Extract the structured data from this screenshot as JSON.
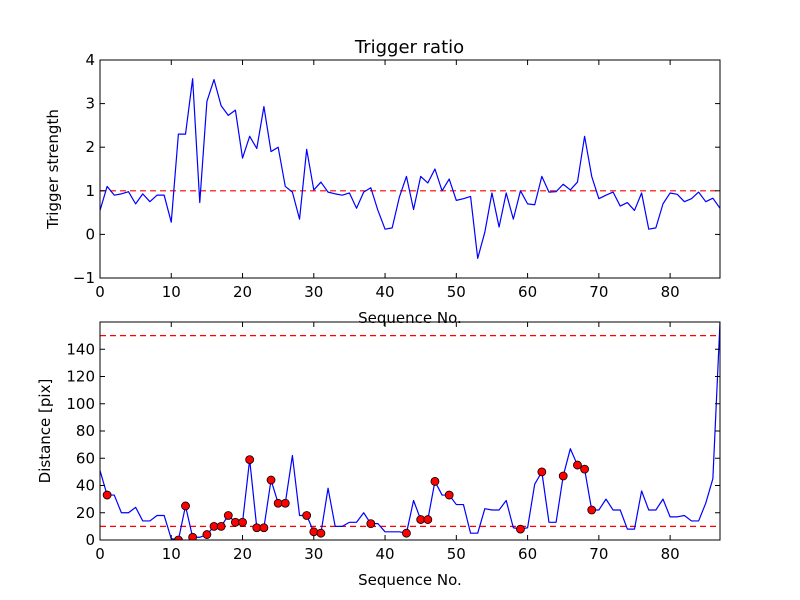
{
  "chart_data": [
    {
      "type": "line",
      "title": "Trigger ratio",
      "xlabel": "Sequence No.",
      "ylabel": "Trigger strength",
      "xlim": [
        0,
        87
      ],
      "ylim": [
        -1,
        4
      ],
      "xticks": [
        0,
        10,
        20,
        30,
        40,
        50,
        60,
        70,
        80
      ],
      "xtick_labels": [
        "0",
        "10",
        "20",
        "30",
        "40",
        "50",
        "60",
        "70",
        "80"
      ],
      "yticks": [
        -1,
        0,
        1,
        2,
        3,
        4
      ],
      "ytick_labels": [
        "−1",
        "0",
        "1",
        "2",
        "3",
        "4"
      ],
      "series": [
        {
          "name": "trigger strength",
          "color": "#0000ff",
          "x": [
            0,
            1,
            2,
            3,
            4,
            5,
            6,
            7,
            8,
            9,
            10,
            11,
            12,
            13,
            14,
            15,
            16,
            17,
            18,
            19,
            20,
            21,
            22,
            23,
            24,
            25,
            26,
            27,
            28,
            29,
            30,
            31,
            32,
            33,
            34,
            35,
            36,
            37,
            38,
            39,
            40,
            41,
            42,
            43,
            44,
            45,
            46,
            47,
            48,
            49,
            50,
            51,
            52,
            53,
            54,
            55,
            56,
            57,
            58,
            59,
            60,
            61,
            62,
            63,
            64,
            65,
            66,
            67,
            68,
            69,
            70,
            71,
            72,
            73,
            74,
            75,
            76,
            77,
            78,
            79,
            80,
            81,
            82,
            83,
            84,
            85,
            86,
            87
          ],
          "values": [
            0.55,
            1.1,
            0.9,
            0.93,
            0.98,
            0.7,
            0.93,
            0.75,
            0.9,
            0.9,
            0.28,
            2.3,
            2.3,
            3.57,
            0.73,
            3.05,
            3.55,
            2.95,
            2.73,
            2.85,
            1.75,
            2.25,
            1.97,
            2.93,
            1.9,
            2.0,
            1.1,
            0.97,
            0.35,
            1.95,
            1.02,
            1.2,
            0.97,
            0.93,
            0.9,
            0.95,
            0.6,
            0.97,
            1.07,
            0.55,
            0.12,
            0.15,
            0.85,
            1.33,
            0.57,
            1.33,
            1.18,
            1.5,
            1.0,
            1.27,
            0.78,
            0.82,
            0.87,
            -0.55,
            0.05,
            0.95,
            0.17,
            0.95,
            0.35,
            1.0,
            0.7,
            0.68,
            1.33,
            0.97,
            0.98,
            1.15,
            1.02,
            1.2,
            2.25,
            1.33,
            0.82,
            0.9,
            0.97,
            0.65,
            0.73,
            0.55,
            0.95,
            0.12,
            0.15,
            0.7,
            0.95,
            0.92,
            0.75,
            0.82,
            0.97,
            0.75,
            0.83,
            0.6
          ]
        }
      ],
      "reference_lines": [
        {
          "y": 1,
          "color": "#ff0000",
          "style": "dashed"
        }
      ]
    },
    {
      "type": "line",
      "title": "",
      "xlabel": "Sequence No.",
      "ylabel": "Distance [pix]",
      "xlim": [
        0,
        87
      ],
      "ylim": [
        0,
        160
      ],
      "xticks": [
        0,
        10,
        20,
        30,
        40,
        50,
        60,
        70,
        80
      ],
      "xtick_labels": [
        "0",
        "10",
        "20",
        "30",
        "40",
        "50",
        "60",
        "70",
        "80"
      ],
      "yticks": [
        0,
        20,
        40,
        60,
        80,
        100,
        120,
        140
      ],
      "ytick_labels": [
        "0",
        "20",
        "40",
        "60",
        "80",
        "100",
        "120",
        "140"
      ],
      "series": [
        {
          "name": "distance",
          "color": "#0000ff",
          "x": [
            0,
            1,
            2,
            3,
            4,
            5,
            6,
            7,
            8,
            9,
            10,
            11,
            12,
            13,
            14,
            15,
            16,
            17,
            18,
            19,
            20,
            21,
            22,
            23,
            24,
            25,
            26,
            27,
            28,
            29,
            30,
            31,
            32,
            33,
            34,
            35,
            36,
            37,
            38,
            39,
            40,
            41,
            42,
            43,
            44,
            45,
            46,
            47,
            48,
            49,
            50,
            51,
            52,
            53,
            54,
            55,
            56,
            57,
            58,
            59,
            60,
            61,
            62,
            63,
            64,
            65,
            66,
            67,
            68,
            69,
            70,
            71,
            72,
            73,
            74,
            75,
            76,
            77,
            78,
            79,
            80,
            81,
            82,
            83,
            84,
            85,
            86,
            87
          ],
          "values": [
            51,
            33,
            33,
            20,
            20,
            24,
            14,
            14,
            18,
            18,
            1,
            0,
            25,
            2,
            2,
            4,
            10,
            10,
            18,
            13,
            13,
            59,
            9,
            9,
            44,
            27,
            27,
            62,
            18,
            18,
            6,
            5,
            38,
            10,
            10,
            13,
            13,
            20,
            12,
            12,
            6,
            6,
            6,
            5,
            29,
            15,
            15,
            43,
            33,
            33,
            26,
            26,
            5,
            5,
            23,
            22,
            22,
            29,
            9,
            8,
            9,
            41,
            50,
            13,
            13,
            47,
            67,
            55,
            52,
            22,
            22,
            30,
            22,
            22,
            8,
            8,
            36,
            22,
            22,
            30,
            17,
            17,
            18,
            14,
            14,
            27,
            45,
            160
          ]
        }
      ],
      "markers": {
        "color": "#ff0000",
        "x": [
          1,
          11,
          12,
          13,
          15,
          16,
          17,
          18,
          19,
          20,
          21,
          22,
          23,
          24,
          25,
          26,
          29,
          30,
          31,
          38,
          43,
          45,
          46,
          47,
          49,
          59,
          62,
          65,
          67,
          68,
          69
        ],
        "y": [
          33,
          0,
          25,
          2,
          4,
          10,
          10,
          18,
          13,
          13,
          59,
          9,
          9,
          44,
          27,
          27,
          18,
          6,
          5,
          12,
          5,
          15,
          15,
          43,
          33,
          8,
          50,
          47,
          55,
          52,
          22
        ]
      },
      "reference_lines": [
        {
          "y": 150,
          "color": "#ff0000",
          "style": "dashed"
        },
        {
          "y": 10,
          "color": "#ff0000",
          "style": "dashed"
        }
      ]
    }
  ]
}
